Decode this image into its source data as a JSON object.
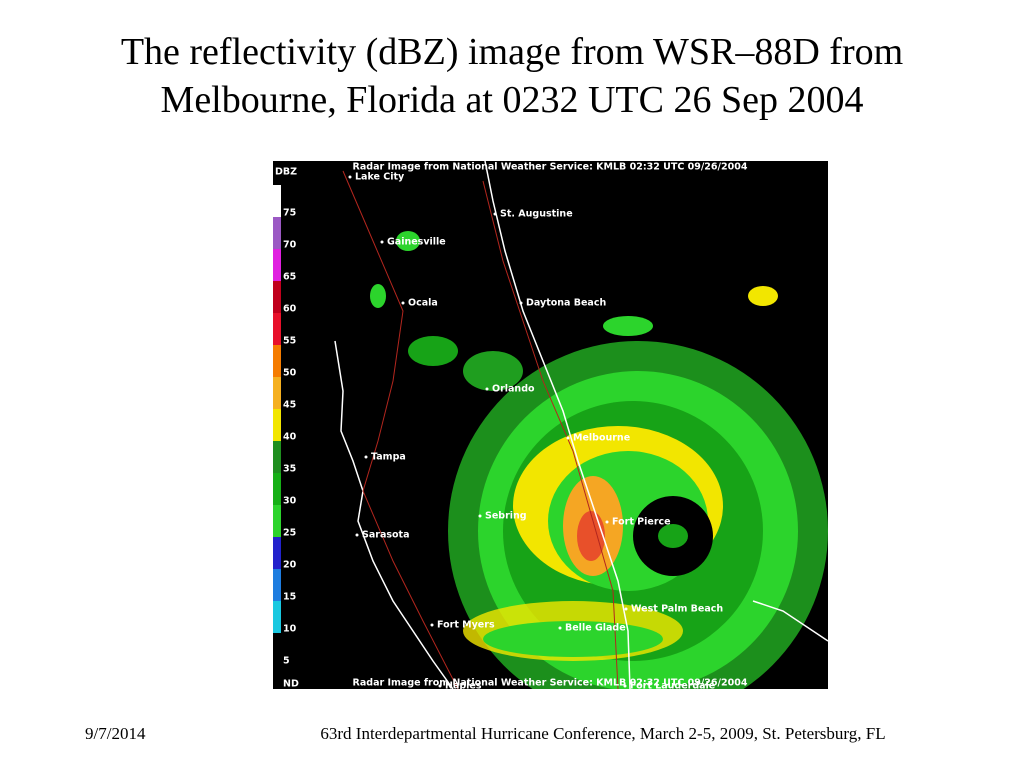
{
  "title": "The reflectivity (dBZ) image from WSR–88D from Melbourne, Florida at 0232 UTC 26 Sep 2004",
  "radar_image": {
    "header": "Radar Image from National Weather Service: KMLB   02:32 UTC  09/26/2004",
    "footer": "Radar Image from National Weather Service: KMLB   02:32 UTC  09/26/2004",
    "scale": {
      "title": "DBZ",
      "levels": [
        75,
        70,
        65,
        60,
        55,
        50,
        45,
        40,
        35,
        30,
        25,
        20,
        15,
        10,
        5
      ],
      "bottom": "ND"
    },
    "cities": [
      "Lake City",
      "St. Augustine",
      "Gainesville",
      "Ocala",
      "Daytona Beach",
      "Orlando",
      "Melbourne",
      "Tampa",
      "Sebring",
      "Fort Pierce",
      "Sarasota",
      "West Palm Beach",
      "Fort Myers",
      "Belle Glade",
      "Naples",
      "Fort Lauderdale"
    ]
  },
  "footer": {
    "date": "9/7/2014",
    "conference": "63rd Interdepartmental Hurricane Conference, March 2-5, 2009, St. Petersburg, FL"
  }
}
